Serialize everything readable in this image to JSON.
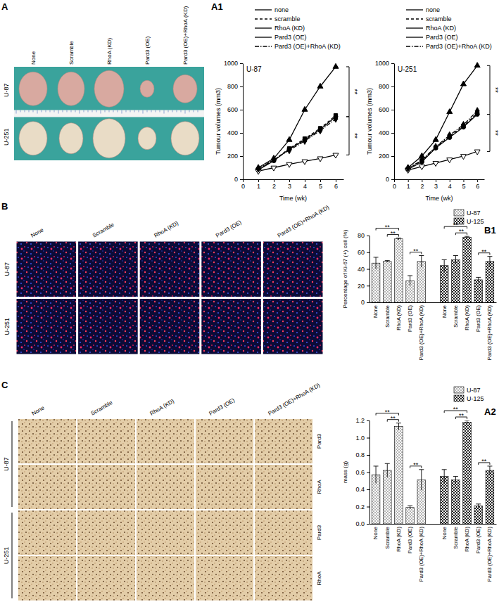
{
  "panel_labels": [
    "A",
    "A1",
    "B",
    "B1",
    "C",
    "A2"
  ],
  "image_panels": [
    {
      "columns": [
        "None",
        "Scramble",
        "RhoA (KD)",
        "Pard3 (OE)",
        "Pard3 (OE)+RhoA (KD)"
      ],
      "rows": [
        "U-87",
        "U-251"
      ]
    },
    {
      "columns": [
        "None",
        "Scramble",
        "RhoA (KD)",
        "Pard3 (OE)",
        "Pard3 (OE)+RhoA (KD)"
      ],
      "rows": [
        "U-87",
        "U-251"
      ]
    },
    {
      "columns": [
        "None",
        "Scramble",
        "RhoA (KD)",
        "Pard3 (OE)",
        "Pard3 (OE)+RhoA (KD)"
      ],
      "rows": [
        "U-87",
        "U-251"
      ],
      "stains": [
        "Pard3",
        "RhoA"
      ]
    }
  ],
  "chart_data": [
    {
      "type": "line",
      "title": "U-87",
      "xlabel": "Time (wk)",
      "ylabel": "Tumour volumes (mm3)",
      "x": [
        1,
        2,
        3,
        4,
        5,
        6
      ],
      "xlim": [
        0,
        6.5
      ],
      "xticks": [
        0,
        1,
        2,
        3,
        4,
        5,
        6
      ],
      "ylim": [
        0,
        1000
      ],
      "yticks": [
        0,
        200,
        400,
        600,
        800,
        1000
      ],
      "legend": "top",
      "series": [
        {
          "name": "none",
          "color": "#000000",
          "line_style": "solid",
          "marker": "circle",
          "values": [
            80,
            160,
            260,
            340,
            430,
            540
          ]
        },
        {
          "name": "scramble",
          "color": "#000000",
          "line_style": "dashed",
          "marker": "square",
          "values": [
            85,
            165,
            265,
            350,
            440,
            550
          ]
        },
        {
          "name": "RhoA (KD)",
          "color": "#000000",
          "line_style": "solid",
          "marker": "triangle-up",
          "values": [
            100,
            180,
            340,
            600,
            800,
            970
          ]
        },
        {
          "name": "Pard3 (OE)",
          "color": "#000000",
          "line_style": "solid",
          "marker": "triangle-down-open",
          "values": [
            70,
            100,
            130,
            155,
            180,
            210
          ]
        },
        {
          "name": "Pard3 (OE)+RhoA (KD)",
          "color": "#000000",
          "line_style": "dashdot",
          "marker": "diamond",
          "values": [
            90,
            170,
            250,
            330,
            420,
            520
          ]
        }
      ],
      "annotations": [
        {
          "text": "**",
          "between": [
            2,
            0
          ]
        },
        {
          "text": "**",
          "between": [
            0,
            3
          ]
        }
      ]
    },
    {
      "type": "line",
      "title": "U-251",
      "xlabel": "Time (wk)",
      "ylabel": "Tumour volumes (mm3)",
      "x": [
        1,
        2,
        3,
        4,
        5,
        6
      ],
      "xlim": [
        0,
        6.5
      ],
      "xticks": [
        0,
        1,
        2,
        3,
        4,
        5,
        6
      ],
      "ylim": [
        0,
        1000
      ],
      "yticks": [
        0,
        200,
        400,
        600,
        800,
        1000
      ],
      "legend": "top",
      "series": [
        {
          "name": "none",
          "color": "#000000",
          "line_style": "solid",
          "marker": "circle",
          "values": [
            85,
            150,
            270,
            360,
            450,
            560
          ]
        },
        {
          "name": "scramble",
          "color": "#000000",
          "line_style": "dashed",
          "marker": "square",
          "values": [
            90,
            160,
            275,
            370,
            460,
            570
          ]
        },
        {
          "name": "RhoA (KD)",
          "color": "#000000",
          "line_style": "solid",
          "marker": "triangle-up",
          "values": [
            100,
            200,
            340,
            580,
            820,
            980
          ]
        },
        {
          "name": "Pard3 (OE)",
          "color": "#000000",
          "line_style": "solid",
          "marker": "triangle-down-open",
          "values": [
            80,
            110,
            140,
            170,
            200,
            240
          ]
        },
        {
          "name": "Pard3 (OE)+RhoA (KD)",
          "color": "#000000",
          "line_style": "dashdot",
          "marker": "diamond",
          "values": [
            95,
            165,
            280,
            380,
            470,
            590
          ]
        }
      ],
      "annotations": [
        {
          "text": "**",
          "between": [
            2,
            0
          ]
        },
        {
          "text": "**",
          "between": [
            0,
            3
          ]
        }
      ]
    },
    {
      "type": "bar",
      "ylabel": "Percentage of Ki-67 (+) cell (%)",
      "categories": [
        "None",
        "Scramble",
        "RhoA (KD)",
        "Pard3 (OE)",
        "Pard3 (OE)+RhoA (KD)"
      ],
      "ylim": [
        0,
        80
      ],
      "yticks": [
        0,
        20,
        40,
        60,
        80
      ],
      "legend": "top-right",
      "series": [
        {
          "name": "U-87",
          "color": "#555555",
          "values": [
            47,
            49,
            76,
            26,
            49
          ],
          "errors": [
            7,
            1,
            1,
            6,
            7
          ]
        },
        {
          "name": "U-125",
          "color": "#222222",
          "values": [
            44,
            51,
            78,
            27,
            49
          ],
          "errors": [
            7,
            5,
            1,
            3,
            6
          ]
        }
      ],
      "annotations": [
        {
          "text": "**",
          "series": 0,
          "between": [
            0,
            2
          ]
        },
        {
          "text": "**",
          "series": 0,
          "between": [
            1,
            2
          ]
        },
        {
          "text": "**",
          "series": 0,
          "between": [
            3,
            4
          ]
        },
        {
          "text": "**",
          "series": 1,
          "between": [
            0,
            2
          ]
        },
        {
          "text": "**",
          "series": 1,
          "between": [
            1,
            2
          ]
        },
        {
          "text": "**",
          "series": 1,
          "between": [
            3,
            4
          ]
        }
      ]
    },
    {
      "type": "bar",
      "ylabel": "mass (g)",
      "categories": [
        "None",
        "Scramble",
        "RhoA (KD)",
        "Pard3 (OE)",
        "Pard3 (OE)+RhoA (KD)"
      ],
      "ylim": [
        0,
        1.2
      ],
      "yticks": [
        {
          "value": 0,
          "label": "0.0"
        },
        0.2,
        0.4,
        0.6,
        0.8,
        {
          "value": 1,
          "label": "1.0"
        },
        1.2
      ],
      "legend": "top-right",
      "series": [
        {
          "name": "U-87",
          "color": "#555555",
          "values": [
            0.57,
            0.62,
            1.13,
            0.19,
            0.51
          ],
          "errors": [
            0.1,
            0.08,
            0.04,
            0.02,
            0.12
          ]
        },
        {
          "name": "U-125",
          "color": "#222222",
          "values": [
            0.55,
            0.51,
            1.18,
            0.21,
            0.62
          ],
          "errors": [
            0.08,
            0.04,
            0.02,
            0.02,
            0.05
          ]
        }
      ],
      "annotations": [
        {
          "text": "**",
          "series": 0,
          "between": [
            0,
            2
          ]
        },
        {
          "text": "**",
          "series": 0,
          "between": [
            1,
            2
          ]
        },
        {
          "text": "**",
          "series": 0,
          "between": [
            3,
            4
          ]
        },
        {
          "text": "**",
          "series": 1,
          "between": [
            0,
            2
          ]
        },
        {
          "text": "**",
          "series": 1,
          "between": [
            1,
            2
          ]
        },
        {
          "text": "**",
          "series": 1,
          "between": [
            3,
            4
          ]
        }
      ]
    }
  ]
}
